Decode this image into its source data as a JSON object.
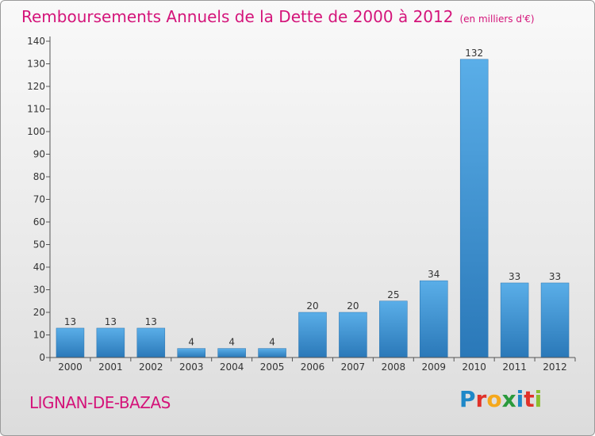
{
  "title": "Remboursements Annuels de la Dette de 2000 à 2012",
  "subtitle": "(en milliers d'€)",
  "commune": "LIGNAN-DE-BAZAS",
  "logo": {
    "letters": [
      {
        "ch": "P",
        "color": "#1e88c8"
      },
      {
        "ch": "r",
        "color": "#e0322a"
      },
      {
        "ch": "o",
        "color": "#f5a81c"
      },
      {
        "ch": "x",
        "color": "#2a9a3c"
      },
      {
        "ch": "i",
        "color": "#1e88c8"
      },
      {
        "ch": "t",
        "color": "#e0322a"
      },
      {
        "ch": "i",
        "color": "#8bbf2e"
      }
    ]
  },
  "chart_data": {
    "type": "bar",
    "categories": [
      "2000",
      "2001",
      "2002",
      "2003",
      "2004",
      "2005",
      "2006",
      "2007",
      "2008",
      "2009",
      "2010",
      "2011",
      "2012"
    ],
    "values": [
      13,
      13,
      13,
      4,
      4,
      4,
      20,
      20,
      25,
      34,
      132,
      33,
      33
    ],
    "data_labels": [
      "13",
      "13",
      "13",
      "4",
      "4",
      "4",
      "20",
      "20",
      "25",
      "34",
      "132",
      "33",
      "33"
    ],
    "ylim": [
      0,
      140
    ],
    "yticks": [
      0,
      10,
      20,
      30,
      40,
      50,
      60,
      70,
      80,
      90,
      100,
      110,
      120,
      130,
      140
    ],
    "grid": false,
    "bar_color": "#3f97d8"
  }
}
